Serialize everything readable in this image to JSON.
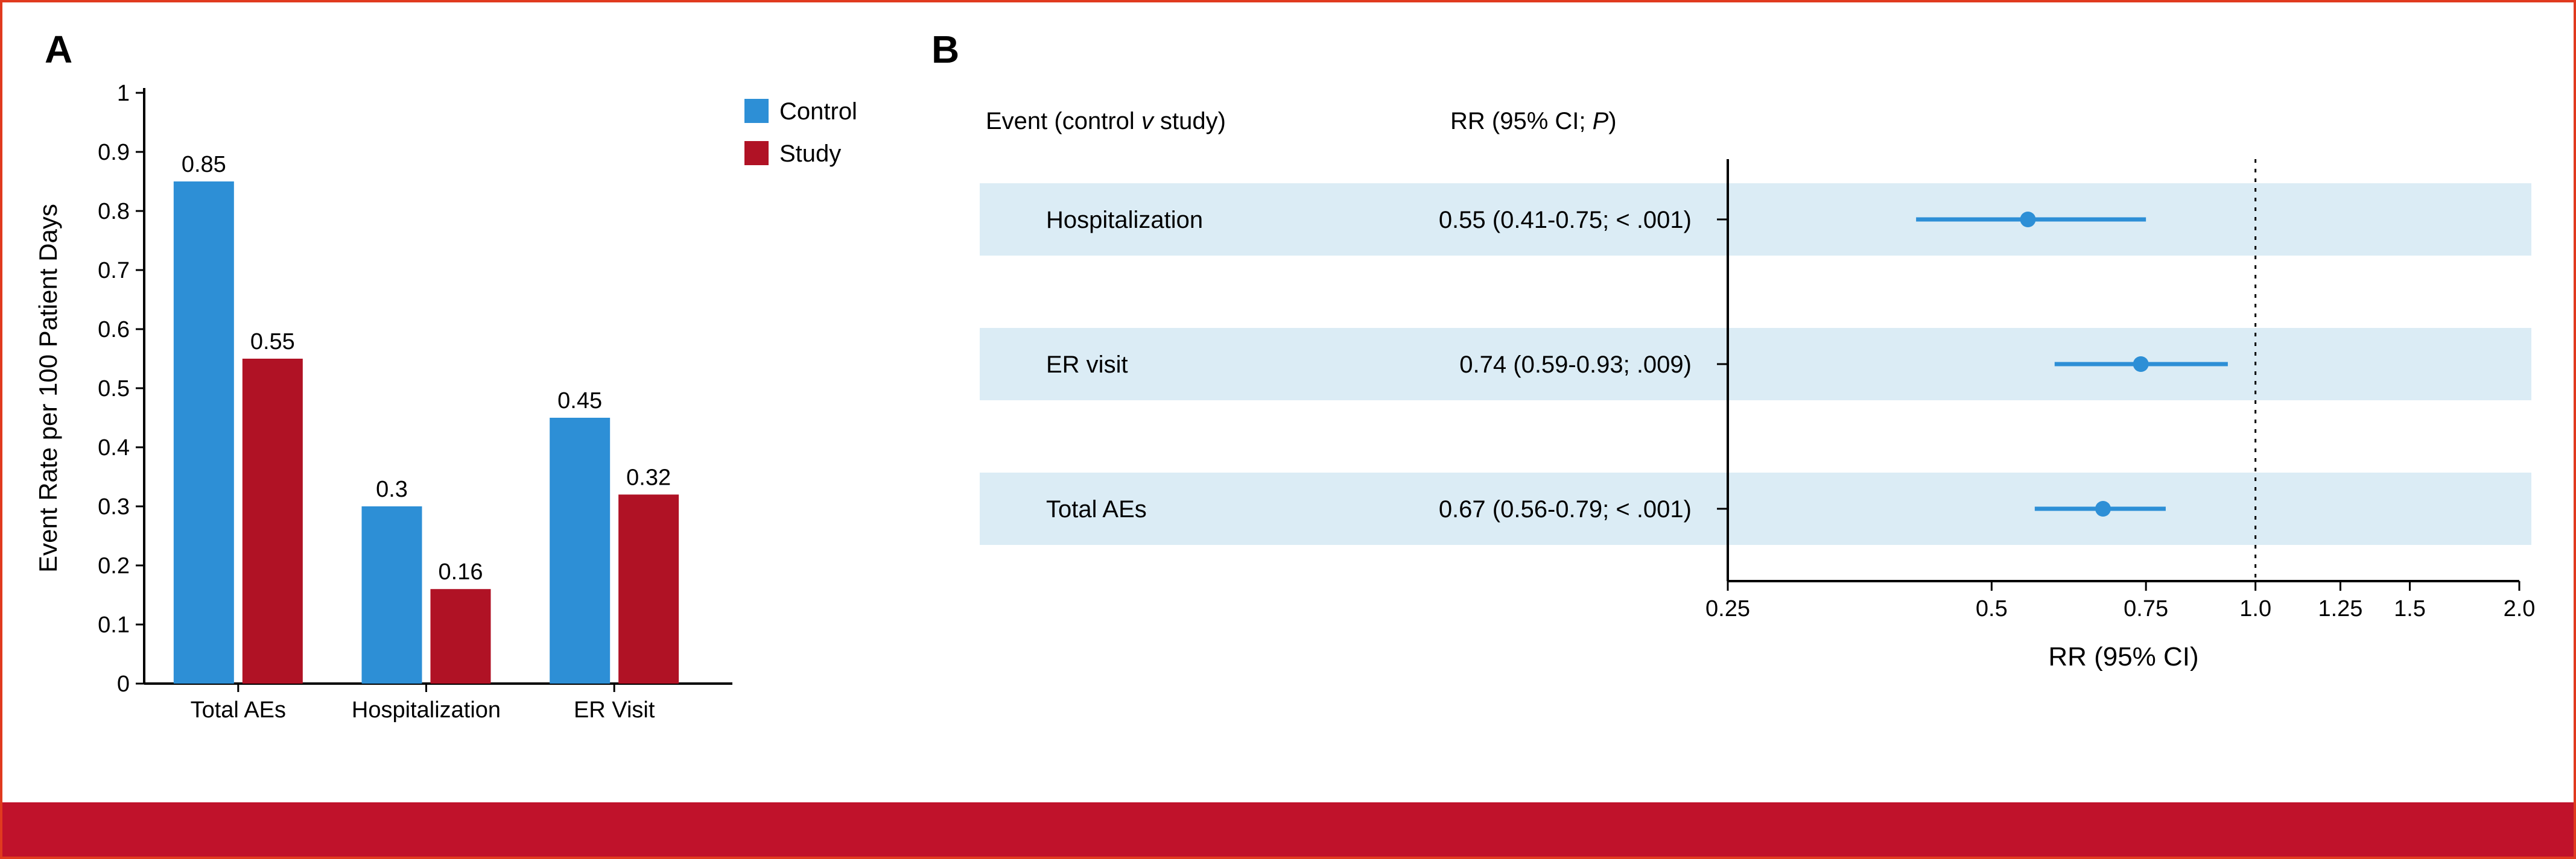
{
  "outer_border_color": "#e03a1f",
  "footer_bar_color": "#c0122b",
  "panel_a": {
    "label": "A",
    "label_fontsize": 64,
    "yaxis_label": "Event Rate per 100 Patient Days",
    "categories": [
      "Total AEs",
      "Hospitalization",
      "ER Visit"
    ],
    "series": [
      {
        "name": "Control",
        "color": "#2d8fd6",
        "values": [
          0.85,
          0.3,
          0.45
        ],
        "value_labels": [
          "0.85",
          "0.3",
          "0.45"
        ]
      },
      {
        "name": "Study",
        "color": "#b01225",
        "values": [
          0.55,
          0.16,
          0.32
        ],
        "value_labels": [
          "0.55",
          "0.16",
          "0.32"
        ]
      }
    ],
    "ylim": [
      0,
      1
    ],
    "ytick_step": 0.1,
    "yticks": [
      "0",
      "0.1",
      "0.2",
      "0.3",
      "0.4",
      "0.5",
      "0.6",
      "0.7",
      "0.8",
      "0.9",
      "1"
    ],
    "axis_color": "#000000",
    "tick_label_fontsize": 38,
    "value_label_fontsize": 38,
    "legend_fontsize": 40
  },
  "panel_b": {
    "label": "B",
    "label_fontsize": 64,
    "header_event": "Event (control",
    "header_event_v": "v",
    "header_event_tail": "study)",
    "header_rr": "RR (95% CI;",
    "header_rr_p": "P",
    "header_rr_tail": ")",
    "xaxis_label": "RR (95% CI)",
    "row_bg": "#dbecf5",
    "marker_color": "#2d8fd6",
    "axis_color": "#000000",
    "ref_line_x": 1.0,
    "xlim": [
      0.25,
      2.0
    ],
    "xticks": [
      0.25,
      0.5,
      0.75,
      1.0,
      1.25,
      1.5,
      2.0
    ],
    "xtick_labels": [
      "0.25",
      "0.5",
      "0.75",
      "1.0",
      "1.25",
      "1.5",
      "2.0"
    ],
    "rows": [
      {
        "event": "Hospitalization",
        "stat": "0.55 (0.41-0.75; < .001)",
        "rr": 0.55,
        "lo": 0.41,
        "hi": 0.75
      },
      {
        "event": "ER visit",
        "stat": "0.74 (0.59-0.93; .009)",
        "rr": 0.74,
        "lo": 0.59,
        "hi": 0.93
      },
      {
        "event": "Total AEs",
        "stat": "0.67 (0.56-0.79; < .001)",
        "rr": 0.67,
        "lo": 0.56,
        "hi": 0.79
      }
    ],
    "header_fontsize": 40,
    "row_fontsize": 40,
    "tick_label_fontsize": 38,
    "axis_label_fontsize": 44
  }
}
